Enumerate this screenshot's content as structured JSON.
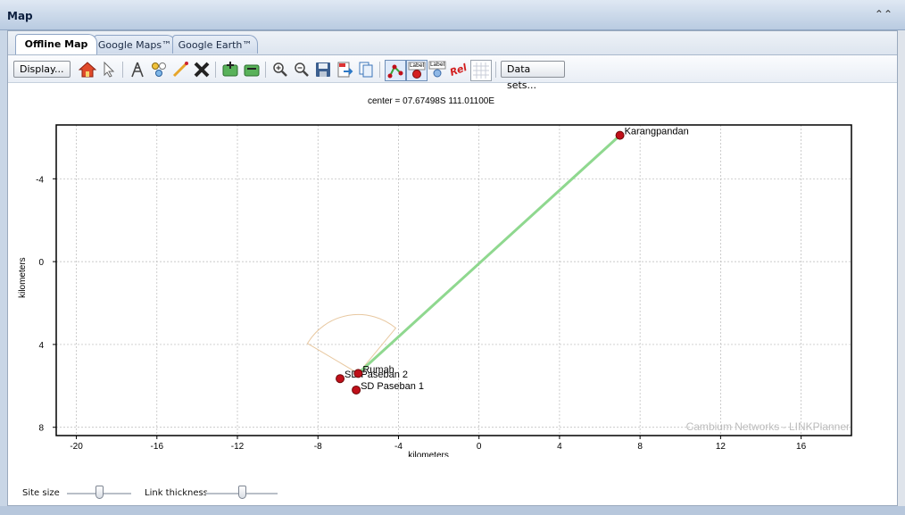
{
  "window": {
    "title": "Map",
    "collapse_icon": "double-chevron-up-icon"
  },
  "tabs": [
    {
      "label": "Offline Map",
      "active": true
    },
    {
      "label": "Google Maps™",
      "active": false
    },
    {
      "label": "Google Earth™",
      "active": false
    }
  ],
  "toolbar": {
    "display_label": "Display...",
    "datasets_label": "Data sets...",
    "label_text": "Label",
    "rel_text": "Rel",
    "icons": [
      "home-icon",
      "pointer-icon",
      "tower-icon",
      "add-sites-icon",
      "draw-link-icon",
      "delete-icon",
      "add-site-icon",
      "edit-site-icon",
      "zoom-in-icon",
      "zoom-out-icon",
      "save-icon",
      "export-pdf-icon",
      "copy-icon",
      "show-links-icon",
      "site-label-icon",
      "link-label-icon",
      "relative-icon",
      "grid-icon"
    ]
  },
  "map": {
    "center_text": "center = 07.67498S 111.01100E",
    "xlabel": "kilometers",
    "ylabel": "kilometers",
    "watermark": "Cambium Networks - LINKPlanner",
    "x_ticks": [
      "-20",
      "-16",
      "-12",
      "-8",
      "-4",
      "0",
      "4",
      "8",
      "12",
      "16"
    ],
    "y_ticks": [
      "-4",
      "0",
      "4",
      "8"
    ],
    "colors": {
      "link": "#8fd88f",
      "site": "#c0101a",
      "arc": "#e8c8a0",
      "grid": "#b8b8b8"
    }
  },
  "chart_data": {
    "type": "scatter",
    "xlabel": "kilometers",
    "ylabel": "kilometers",
    "xlim": [
      -21,
      18.5
    ],
    "ylim": [
      8.4,
      -6.6
    ],
    "x_ticks": [
      -20,
      -16,
      -12,
      -8,
      -4,
      0,
      4,
      8,
      12,
      16
    ],
    "y_ticks": [
      -4,
      0,
      4,
      8
    ],
    "grid": true,
    "sites": [
      {
        "name": "Karangpandan",
        "x": 7.0,
        "y": -6.1
      },
      {
        "name": "SD Paseban 2",
        "x": -6.9,
        "y": 5.65
      },
      {
        "name": "Rumah",
        "x": -6.0,
        "y": 5.4
      },
      {
        "name": "SD Paseban 1",
        "x": -6.1,
        "y": 6.2
      }
    ],
    "links": [
      {
        "from": "Rumah",
        "to": "Karangpandan"
      }
    ]
  },
  "bottom": {
    "site_size_label": "Site size",
    "link_thickness_label": "Link thickness",
    "site_size_value": 0.5,
    "link_thickness_value": 0.5
  }
}
